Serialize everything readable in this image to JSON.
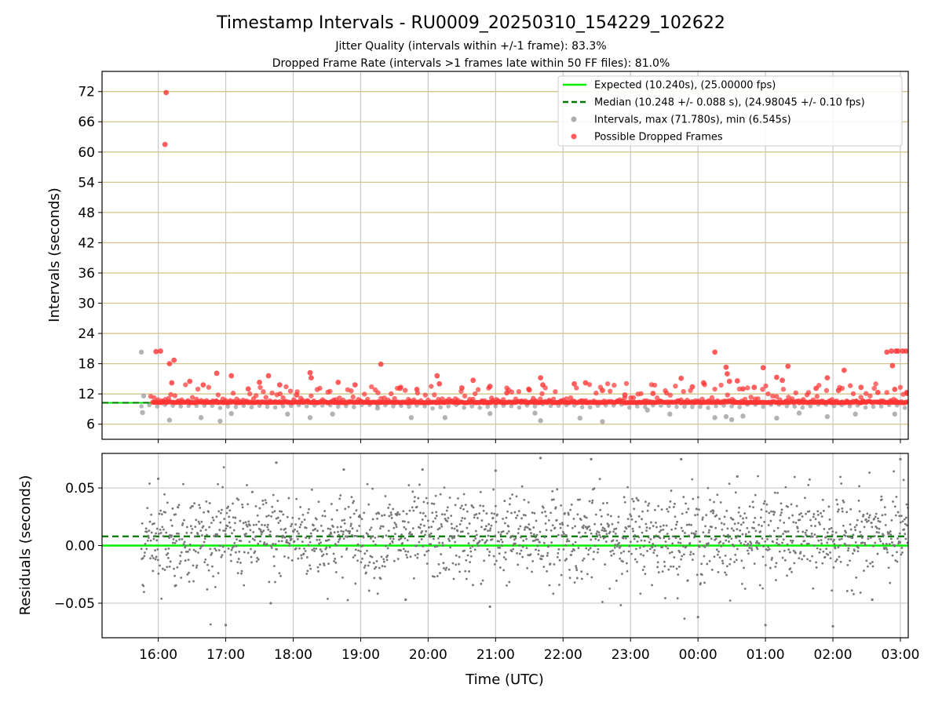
{
  "chart_data": [
    {
      "type": "scatter",
      "panel": "top",
      "title": "Timestamp Intervals - RU0009_20250310_154229_102622",
      "subtitle_lines": [
        "Jitter Quality (intervals within +/-1 frame): 83.3%",
        "Dropped Frame Rate (intervals >1 frames late within 50 FF files): 81.0%"
      ],
      "ylabel": "Intervals (seconds)",
      "xlim": [
        "15:10",
        "03:07"
      ],
      "ylim": [
        3,
        76
      ],
      "yticks": [
        6,
        12,
        18,
        24,
        30,
        36,
        42,
        48,
        54,
        60,
        66,
        72
      ],
      "grid": true,
      "legend_position": "top-right",
      "legend": [
        {
          "label": "Expected (10.240s), (25.00000 fps)",
          "style": "line",
          "color": "#00ee00"
        },
        {
          "label": "Median (10.248 +/- 0.088 s), (24.98045 +/- 0.10 fps)",
          "style": "dashed",
          "color": "#007700"
        },
        {
          "label": "Intervals, max (71.780s), min (6.545s)",
          "style": "dot",
          "color": "#999999"
        },
        {
          "label": "Possible Dropped Frames",
          "style": "dot",
          "color": "#ff3333"
        }
      ],
      "expected_value": 10.24,
      "median_value": 10.248,
      "series": [
        {
          "name": "Possible Dropped Frames",
          "color": "#ff3333",
          "points": [
            {
              "x": "16:07",
              "y": 71.8
            },
            {
              "x": "16:06",
              "y": 61.5
            },
            {
              "x": "15:58",
              "y": 20.4
            },
            {
              "x": "16:02",
              "y": 20.5
            },
            {
              "x": "16:10",
              "y": 18.0
            },
            {
              "x": "16:14",
              "y": 18.7
            },
            {
              "x": "16:12",
              "y": 14.2
            },
            {
              "x": "16:28",
              "y": 14.5
            },
            {
              "x": "16:40",
              "y": 13.8
            },
            {
              "x": "16:52",
              "y": 16.1
            },
            {
              "x": "17:05",
              "y": 15.6
            },
            {
              "x": "17:20",
              "y": 13.0
            },
            {
              "x": "17:30",
              "y": 14.3
            },
            {
              "x": "17:38",
              "y": 15.6
            },
            {
              "x": "17:48",
              "y": 13.8
            },
            {
              "x": "18:03",
              "y": 11.8
            },
            {
              "x": "18:15",
              "y": 16.2
            },
            {
              "x": "18:16",
              "y": 15.2
            },
            {
              "x": "18:40",
              "y": 14.3
            },
            {
              "x": "18:55",
              "y": 13.8
            },
            {
              "x": "19:18",
              "y": 17.9
            },
            {
              "x": "19:35",
              "y": 13.1
            },
            {
              "x": "19:50",
              "y": 12.9
            },
            {
              "x": "20:08",
              "y": 15.6
            },
            {
              "x": "20:10",
              "y": 14.0
            },
            {
              "x": "20:30",
              "y": 13.2
            },
            {
              "x": "20:40",
              "y": 14.7
            },
            {
              "x": "20:55",
              "y": 13.5
            },
            {
              "x": "21:10",
              "y": 12.2
            },
            {
              "x": "21:30",
              "y": 12.8
            },
            {
              "x": "21:40",
              "y": 15.2
            },
            {
              "x": "21:42",
              "y": 13.8
            },
            {
              "x": "22:10",
              "y": 14.0
            },
            {
              "x": "22:20",
              "y": 14.2
            },
            {
              "x": "22:35",
              "y": 12.7
            },
            {
              "x": "22:55",
              "y": 11.8
            },
            {
              "x": "23:20",
              "y": 12.1
            },
            {
              "x": "23:45",
              "y": 15.1
            },
            {
              "x": "23:55",
              "y": 13.4
            },
            {
              "x": "00:05",
              "y": 14.2
            },
            {
              "x": "00:15",
              "y": 20.3
            },
            {
              "x": "00:25",
              "y": 17.3
            },
            {
              "x": "00:26",
              "y": 16.0
            },
            {
              "x": "00:28",
              "y": 14.5
            },
            {
              "x": "00:35",
              "y": 14.6
            },
            {
              "x": "00:40",
              "y": 13.0
            },
            {
              "x": "00:50",
              "y": 13.3
            },
            {
              "x": "00:58",
              "y": 17.2
            },
            {
              "x": "01:10",
              "y": 15.3
            },
            {
              "x": "01:15",
              "y": 14.7
            },
            {
              "x": "01:20",
              "y": 17.5
            },
            {
              "x": "01:45",
              "y": 13.1
            },
            {
              "x": "01:55",
              "y": 15.2
            },
            {
              "x": "02:05",
              "y": 12.7
            },
            {
              "x": "02:10",
              "y": 16.7
            },
            {
              "x": "02:25",
              "y": 13.3
            },
            {
              "x": "02:40",
              "y": 12.3
            },
            {
              "x": "02:48",
              "y": 20.3
            },
            {
              "x": "02:52",
              "y": 20.5
            },
            {
              "x": "02:56",
              "y": 20.5
            },
            {
              "x": "02:58",
              "y": 20.5
            },
            {
              "x": "03:02",
              "y": 20.5
            },
            {
              "x": "03:05",
              "y": 20.5
            },
            {
              "x": "02:53",
              "y": 17.6
            },
            {
              "x": "02:55",
              "y": 12.9
            },
            {
              "x": "03:06",
              "y": 12.1
            }
          ]
        },
        {
          "name": "Intervals",
          "color": "#999999",
          "points": [
            {
              "x": "15:45",
              "y": 20.3
            },
            {
              "x": "15:46",
              "y": 8.3
            },
            {
              "x": "15:47",
              "y": 11.6
            },
            {
              "x": "16:10",
              "y": 6.8
            },
            {
              "x": "16:38",
              "y": 7.3
            },
            {
              "x": "16:55",
              "y": 6.6
            },
            {
              "x": "17:05",
              "y": 8.1
            },
            {
              "x": "17:55",
              "y": 8.0
            },
            {
              "x": "18:15",
              "y": 7.3
            },
            {
              "x": "18:35",
              "y": 8.0
            },
            {
              "x": "19:15",
              "y": 9.2
            },
            {
              "x": "19:45",
              "y": 7.3
            },
            {
              "x": "20:15",
              "y": 7.3
            },
            {
              "x": "20:55",
              "y": 8.1
            },
            {
              "x": "21:35",
              "y": 8.2
            },
            {
              "x": "21:40",
              "y": 6.7
            },
            {
              "x": "22:15",
              "y": 7.2
            },
            {
              "x": "22:35",
              "y": 6.5
            },
            {
              "x": "23:15",
              "y": 8.8
            },
            {
              "x": "23:35",
              "y": 8.0
            },
            {
              "x": "00:15",
              "y": 7.3
            },
            {
              "x": "00:25",
              "y": 7.5
            },
            {
              "x": "00:30",
              "y": 6.9
            },
            {
              "x": "00:40",
              "y": 7.6
            },
            {
              "x": "01:10",
              "y": 7.2
            },
            {
              "x": "01:30",
              "y": 8.2
            },
            {
              "x": "01:55",
              "y": 7.5
            },
            {
              "x": "02:20",
              "y": 8.0
            },
            {
              "x": "02:55",
              "y": 8.0
            }
          ]
        }
      ]
    },
    {
      "type": "scatter",
      "panel": "bottom",
      "xlabel": "Time (UTC)",
      "ylabel": "Residuals (seconds)",
      "ylim": [
        -0.08,
        0.08
      ],
      "yticks": [
        -0.05,
        0.0,
        0.05
      ],
      "ytick_labels": [
        "−0.05",
        "0.00",
        "0.05"
      ],
      "xticks": [
        "16:00",
        "17:00",
        "18:00",
        "19:00",
        "20:00",
        "21:00",
        "22:00",
        "23:00",
        "00:00",
        "01:00",
        "02:00",
        "03:00"
      ],
      "grid": true,
      "expected_value": 0.0,
      "median_value": 0.008,
      "series": [
        {
          "name": "Residuals",
          "color": "#777777",
          "points": [
            {
              "x": "16:00",
              "y": 0.058
            },
            {
              "x": "16:15",
              "y": -0.035
            },
            {
              "x": "17:00",
              "y": -0.069
            },
            {
              "x": "17:40",
              "y": -0.05
            },
            {
              "x": "17:45",
              "y": 0.072
            },
            {
              "x": "18:45",
              "y": 0.066
            },
            {
              "x": "19:40",
              "y": -0.047
            },
            {
              "x": "19:55",
              "y": 0.066
            },
            {
              "x": "20:55",
              "y": -0.053
            },
            {
              "x": "21:00",
              "y": 0.065
            },
            {
              "x": "21:40",
              "y": 0.076
            },
            {
              "x": "22:25",
              "y": 0.075
            },
            {
              "x": "23:45",
              "y": 0.075
            },
            {
              "x": "00:00",
              "y": -0.062
            },
            {
              "x": "00:35",
              "y": 0.06
            },
            {
              "x": "01:00",
              "y": -0.069
            },
            {
              "x": "02:00",
              "y": -0.07
            },
            {
              "x": "02:35",
              "y": -0.047
            },
            {
              "x": "03:00",
              "y": 0.075
            }
          ]
        }
      ]
    }
  ]
}
